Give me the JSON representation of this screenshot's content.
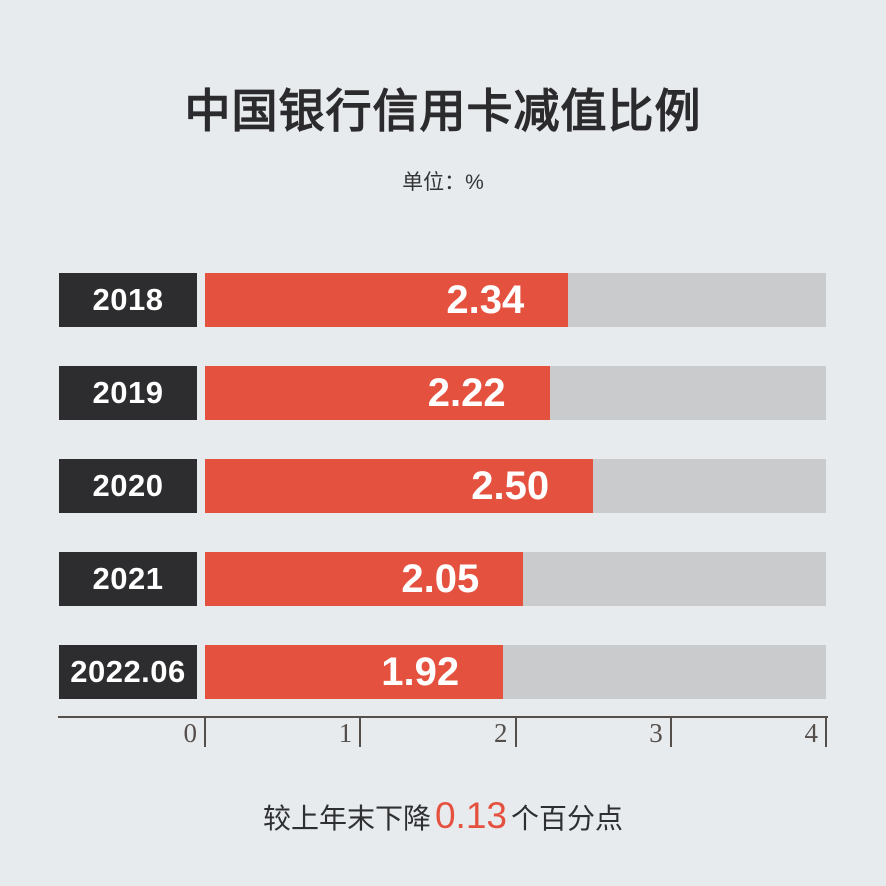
{
  "page": {
    "title": "中国银行信用卡减值比例",
    "unit_label": "单位：%"
  },
  "note": {
    "prefix": "较上年末下降",
    "highlight_value": "0.13",
    "suffix": "个百分点"
  },
  "colors": {
    "background": "#E8EBEE",
    "bar": "#E5513F",
    "track": "#CACBCC",
    "label_box": "#2D2D2F",
    "axis": "#554F4C",
    "accent": "#E5513F",
    "title_text": "#2B2B2D",
    "bar_text": "#FFFFFF"
  },
  "chart_data": {
    "type": "bar",
    "orientation": "horizontal",
    "title": "中国银行信用卡减值比例",
    "unit": "%",
    "categories": [
      "2018",
      "2019",
      "2020",
      "2021",
      "2022.06"
    ],
    "values": [
      2.34,
      2.22,
      2.5,
      2.05,
      1.92
    ],
    "value_labels": [
      "2.34",
      "2.22",
      "2.50",
      "2.05",
      "1.92"
    ],
    "xlim": [
      0,
      4
    ],
    "x_ticks": [
      0,
      1,
      2,
      3,
      4
    ],
    "grid": false,
    "legend": false,
    "annotation": "较上年末下降 0.13 个百分点"
  }
}
